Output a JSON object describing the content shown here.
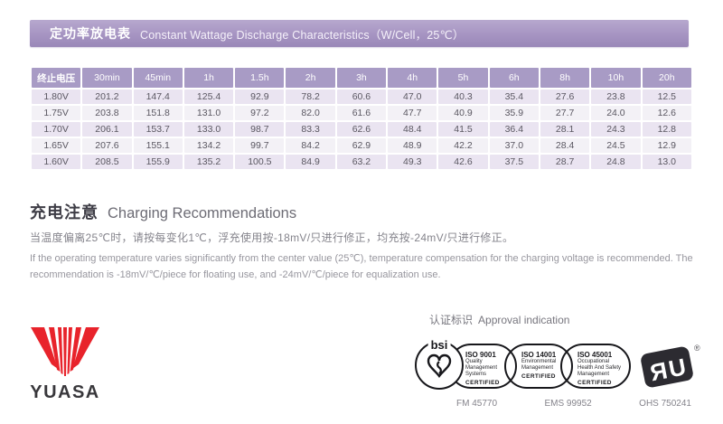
{
  "banner": {
    "title_cn": "定功率放电表",
    "title_en": "Constant Wattage Discharge Characteristics（W/Cell，25℃）"
  },
  "discharge_table": {
    "columns": [
      "终止电压",
      "30min",
      "45min",
      "1h",
      "1.5h",
      "2h",
      "3h",
      "4h",
      "5h",
      "6h",
      "8h",
      "10h",
      "20h"
    ],
    "rows": [
      {
        "voltage": "1.80V",
        "values": [
          "201.2",
          "147.4",
          "125.4",
          "92.9",
          "78.2",
          "60.6",
          "47.0",
          "40.3",
          "35.4",
          "27.6",
          "23.8",
          "12.5"
        ]
      },
      {
        "voltage": "1.75V",
        "values": [
          "203.8",
          "151.8",
          "131.0",
          "97.2",
          "82.0",
          "61.6",
          "47.7",
          "40.9",
          "35.9",
          "27.7",
          "24.0",
          "12.6"
        ]
      },
      {
        "voltage": "1.70V",
        "values": [
          "206.1",
          "153.7",
          "133.0",
          "98.7",
          "83.3",
          "62.6",
          "48.4",
          "41.5",
          "36.4",
          "28.1",
          "24.3",
          "12.8"
        ]
      },
      {
        "voltage": "1.65V",
        "values": [
          "207.6",
          "155.1",
          "134.2",
          "99.7",
          "84.2",
          "62.9",
          "48.9",
          "42.2",
          "37.0",
          "28.4",
          "24.5",
          "12.9"
        ]
      },
      {
        "voltage": "1.60V",
        "values": [
          "208.5",
          "155.9",
          "135.2",
          "100.5",
          "84.9",
          "63.2",
          "49.3",
          "42.6",
          "37.5",
          "28.7",
          "24.8",
          "13.0"
        ]
      }
    ]
  },
  "charging": {
    "heading_cn": "充电注意",
    "heading_en": "Charging Recommendations",
    "body_cn": "当温度偏离25℃时，请按每变化1℃，浮充使用按-18mV/只进行修正，均充按-24mV/只进行修正。",
    "body_en": "If the operating temperature varies significantly from the center value (25℃), temperature compensation for the charging voltage is recommended. The recommendation is -18mV/℃/piece for floating use, and -24mV/℃/piece for equalization use."
  },
  "approval": {
    "heading_cn": "认证标识",
    "heading_en": "Approval indication",
    "bsi_label": "bsi",
    "certs": [
      {
        "title": "ISO 9001",
        "subtitle": "Quality Management Systems",
        "certified": "CERTIFIED",
        "number": "FM 45770"
      },
      {
        "title": "ISO 14001",
        "subtitle": "Environmental Management",
        "certified": "CERTIFIED",
        "number": "EMS 99952"
      },
      {
        "title": "ISO 45001",
        "subtitle": "Occupational Health And Safety Management",
        "certified": "CERTIFIED",
        "number": "OHS 750241"
      }
    ]
  },
  "brand": {
    "name": "YUASA",
    "logo_red": "#e8232b",
    "ul_mark_icon": "ul-recognized-component-icon"
  },
  "colors": {
    "banner_purple": "#a694c2",
    "table_header_purple": "#a89bc5",
    "row_lavender": "#eae4f1",
    "row_gray": "#f3f1f6"
  }
}
